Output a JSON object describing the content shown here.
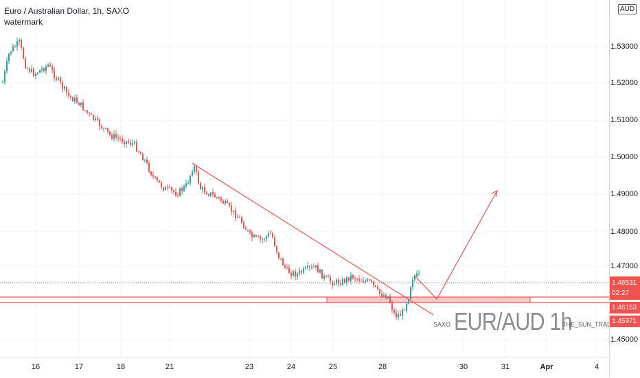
{
  "header": {
    "title": "Euro / Australian Dollar, 1h, SAXO",
    "indicator": "watermark"
  },
  "currency_badge": "AUD",
  "price_axis": {
    "ticks": [
      "1.53000",
      "1.52000",
      "1.51000",
      "1.50000",
      "1.49000",
      "1.48000",
      "1.47000",
      "1.45000"
    ],
    "tags": [
      {
        "label": "1.46531 02:27",
        "color": "#ef5350"
      },
      {
        "label": "1.46153",
        "color": "#ef5350"
      },
      {
        "label": "1.45971",
        "color": "#ef5350"
      }
    ]
  },
  "time_axis": {
    "ticks": [
      "16",
      "17",
      "18",
      "21",
      "23",
      "24",
      "25",
      "28",
      "30",
      "31",
      "Apr",
      "4"
    ],
    "bold_tick": "Apr"
  },
  "watermark": {
    "main": "EUR/AUD 1h",
    "left_small": "SAXO",
    "right_small": "THE_SUN_TRADER"
  },
  "chart_data": {
    "type": "candlestick",
    "symbol": "EUR/AUD",
    "interval": "1h",
    "last_price": 1.46531,
    "countdown": "02:27",
    "support_zone": [
      1.45971,
      1.46153
    ],
    "ylim": [
      1.445,
      1.537
    ],
    "colors": {
      "up": "#26a69a",
      "down": "#ef5350",
      "lines": "#ef5350",
      "zone": "#f8c9c9"
    }
  }
}
